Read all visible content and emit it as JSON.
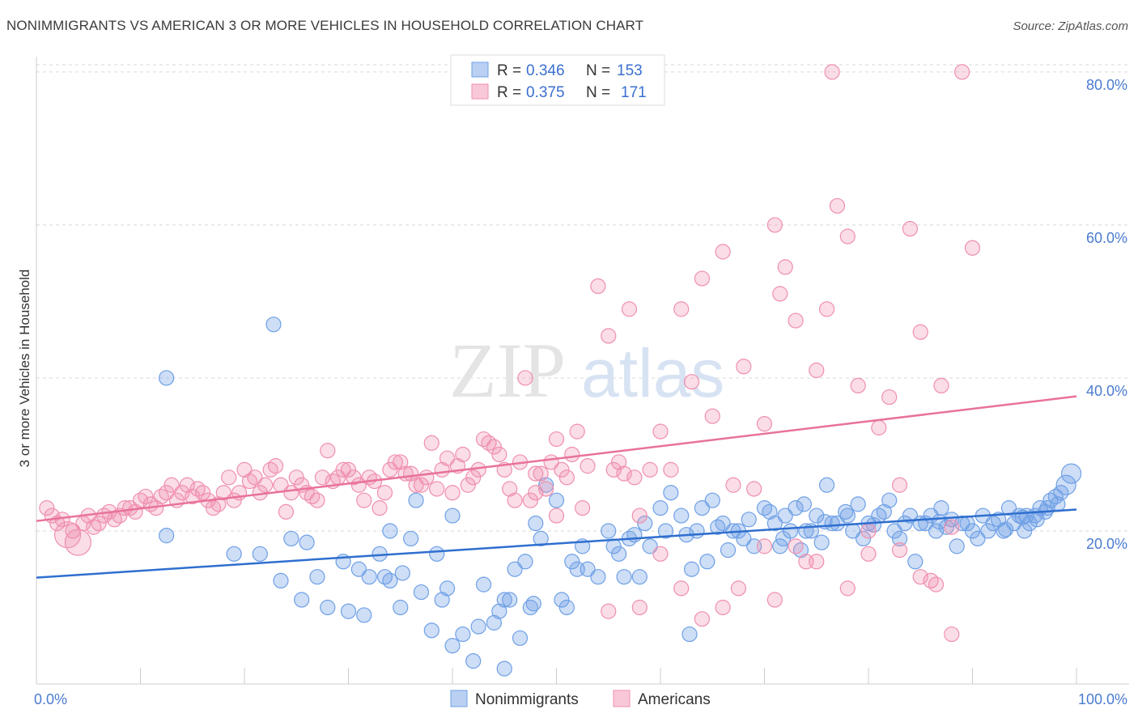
{
  "title": "NONIMMIGRANTS VS AMERICAN 3 OR MORE VEHICLES IN HOUSEHOLD CORRELATION CHART",
  "source": "Source: ZipAtlas.com",
  "watermark": {
    "zip": "ZIP",
    "atlas": "atlas"
  },
  "legend": {
    "r_label": "R =",
    "n_label": "N =",
    "rows": [
      {
        "r": "0.346",
        "n": "153",
        "color": "#6fa0e6"
      },
      {
        "r": "0.375",
        "n": "171",
        "color": "#f08fae"
      }
    ]
  },
  "chart_data": {
    "type": "scatter",
    "xlabel": "",
    "ylabel": "3 or more Vehicles in Household",
    "xlim": [
      0,
      100
    ],
    "ylim": [
      0,
      82
    ],
    "x_tick_labels": [
      "0.0%",
      "100.0%"
    ],
    "y_ticks": [
      20,
      40,
      60,
      80
    ],
    "y_tick_labels": [
      "20.0%",
      "40.0%",
      "60.0%",
      "80.0%"
    ],
    "grid": true,
    "legend_position": "top-center",
    "series": [
      {
        "name": "Nonimmigrants",
        "color": "#6fa0e6",
        "trend": {
          "x": [
            0,
            100
          ],
          "y": [
            13.9,
            22.8
          ]
        },
        "points": [
          [
            12.5,
            19.4
          ],
          [
            22.8,
            47.0
          ],
          [
            12.5,
            40.0
          ],
          [
            19,
            17
          ],
          [
            26,
            18.5
          ],
          [
            27,
            14
          ],
          [
            28,
            10
          ],
          [
            25.5,
            11
          ],
          [
            30,
            9.5
          ],
          [
            31,
            15
          ],
          [
            32,
            14
          ],
          [
            33,
            17
          ],
          [
            34,
            20
          ],
          [
            34,
            13.5
          ],
          [
            35,
            10
          ],
          [
            36,
            19
          ],
          [
            37,
            12
          ],
          [
            38,
            7
          ],
          [
            39,
            11
          ],
          [
            40,
            5
          ],
          [
            40,
            22
          ],
          [
            41,
            6.5
          ],
          [
            42,
            3
          ],
          [
            43,
            13
          ],
          [
            44,
            8
          ],
          [
            45,
            11
          ],
          [
            45,
            2
          ],
          [
            46,
            15
          ],
          [
            47,
            16
          ],
          [
            47.5,
            10
          ],
          [
            48,
            21
          ],
          [
            49,
            26
          ],
          [
            50,
            24
          ],
          [
            50.5,
            11
          ],
          [
            51,
            10
          ],
          [
            52,
            15
          ],
          [
            53,
            15
          ],
          [
            54,
            14
          ],
          [
            55,
            20
          ],
          [
            55.5,
            18
          ],
          [
            56,
            17
          ],
          [
            57,
            19
          ],
          [
            58,
            14
          ],
          [
            58.5,
            21
          ],
          [
            59,
            18
          ],
          [
            60,
            23
          ],
          [
            61,
            25
          ],
          [
            62,
            22
          ],
          [
            62.5,
            19.5
          ],
          [
            63,
            15
          ],
          [
            63.5,
            20
          ],
          [
            64,
            23
          ],
          [
            65,
            24
          ],
          [
            66,
            21
          ],
          [
            66.5,
            17.5
          ],
          [
            67,
            20
          ],
          [
            68,
            19
          ],
          [
            69,
            18
          ],
          [
            70,
            23
          ],
          [
            71,
            21
          ],
          [
            71.5,
            18
          ],
          [
            72,
            22
          ],
          [
            72.5,
            20
          ],
          [
            73,
            23
          ],
          [
            73.5,
            17.5
          ],
          [
            74,
            20
          ],
          [
            75,
            22
          ],
          [
            75.5,
            18.5
          ],
          [
            76,
            26
          ],
          [
            77,
            21
          ],
          [
            78,
            22
          ],
          [
            78.5,
            20
          ],
          [
            79,
            23.5
          ],
          [
            80,
            21
          ],
          [
            81,
            22
          ],
          [
            82,
            24
          ],
          [
            82.5,
            20
          ],
          [
            83,
            19
          ],
          [
            84,
            22
          ],
          [
            84.5,
            16
          ],
          [
            85,
            21
          ],
          [
            86,
            22
          ],
          [
            86.5,
            20
          ],
          [
            87,
            23
          ],
          [
            88,
            21.5
          ],
          [
            88.5,
            18
          ],
          [
            89,
            21
          ],
          [
            90,
            20
          ],
          [
            90.5,
            19
          ],
          [
            91,
            22
          ],
          [
            92,
            21
          ],
          [
            93,
            20
          ],
          [
            93.5,
            23
          ],
          [
            94,
            21
          ],
          [
            94.5,
            22
          ],
          [
            95,
            20
          ],
          [
            95.5,
            21
          ],
          [
            96,
            22
          ],
          [
            96.5,
            23
          ],
          [
            97,
            22.5
          ],
          [
            97.5,
            24
          ],
          [
            98,
            24.5
          ],
          [
            98.5,
            25
          ],
          [
            99,
            26
          ],
          [
            99.5,
            27.5
          ],
          [
            21.5,
            17
          ],
          [
            23.5,
            13.5
          ],
          [
            24.5,
            19
          ],
          [
            29.5,
            16
          ],
          [
            36.5,
            24
          ],
          [
            44.5,
            9.5
          ],
          [
            46.5,
            6
          ],
          [
            48.5,
            19
          ],
          [
            52.5,
            18
          ],
          [
            56.5,
            14
          ],
          [
            60.5,
            20
          ],
          [
            64.5,
            16
          ],
          [
            67.5,
            20
          ],
          [
            70.5,
            22.5
          ],
          [
            74.5,
            20
          ],
          [
            76.5,
            21
          ],
          [
            79.5,
            19
          ],
          [
            81.5,
            22.5
          ],
          [
            83.5,
            21
          ],
          [
            85.5,
            21
          ],
          [
            87.5,
            20.5
          ],
          [
            89.5,
            21
          ],
          [
            91.5,
            20
          ],
          [
            92.5,
            21.5
          ],
          [
            93.2,
            20.2
          ],
          [
            94.8,
            21.8
          ],
          [
            95.2,
            22
          ],
          [
            96.2,
            21.5
          ],
          [
            97.2,
            23
          ],
          [
            98.2,
            23.5
          ],
          [
            62.8,
            6.5
          ],
          [
            35.2,
            14.5
          ],
          [
            33.5,
            14
          ],
          [
            42.5,
            7.5
          ],
          [
            45.5,
            11
          ],
          [
            38.5,
            17
          ],
          [
            31.5,
            9
          ],
          [
            39.5,
            12.5
          ],
          [
            47.8,
            10.5
          ],
          [
            51.5,
            16
          ],
          [
            57.5,
            19.5
          ],
          [
            65.5,
            20.5
          ],
          [
            68.5,
            21.5
          ],
          [
            71.8,
            19
          ],
          [
            73.8,
            23.5
          ],
          [
            75.8,
            21.2
          ],
          [
            77.8,
            22.5
          ],
          [
            80.5,
            20.8
          ],
          [
            86.8,
            21.2
          ]
        ]
      },
      {
        "name": "Americans",
        "color": "#f08fae",
        "trend": {
          "x": [
            0,
            100
          ],
          "y": [
            21.3,
            37.6
          ]
        },
        "points": [
          [
            4,
            18.5
          ],
          [
            3,
            19.5
          ],
          [
            2,
            21
          ],
          [
            5,
            22
          ],
          [
            6,
            21
          ],
          [
            7,
            22.5
          ],
          [
            8,
            22
          ],
          [
            9,
            23
          ],
          [
            10,
            24
          ],
          [
            11,
            23.5
          ],
          [
            12,
            24.5
          ],
          [
            13,
            26
          ],
          [
            14,
            25
          ],
          [
            15,
            24.5
          ],
          [
            16,
            25
          ],
          [
            17,
            23
          ],
          [
            18,
            25
          ],
          [
            19,
            24
          ],
          [
            20,
            28
          ],
          [
            21,
            27
          ],
          [
            22,
            26
          ],
          [
            23,
            28.5
          ],
          [
            24,
            22.5
          ],
          [
            25,
            27
          ],
          [
            26,
            25
          ],
          [
            27,
            24
          ],
          [
            28,
            30.5
          ],
          [
            29,
            27
          ],
          [
            30,
            28
          ],
          [
            31,
            26
          ],
          [
            32,
            27
          ],
          [
            33,
            23
          ],
          [
            34,
            28
          ],
          [
            35,
            29
          ],
          [
            36,
            27.5
          ],
          [
            37,
            26
          ],
          [
            38,
            31.5
          ],
          [
            39,
            28
          ],
          [
            40,
            25
          ],
          [
            41,
            30
          ],
          [
            42,
            27
          ],
          [
            43,
            32
          ],
          [
            44,
            31
          ],
          [
            45,
            28
          ],
          [
            46,
            24
          ],
          [
            47,
            40
          ],
          [
            48,
            27.5
          ],
          [
            49,
            25.5
          ],
          [
            50,
            32
          ],
          [
            51,
            27
          ],
          [
            52,
            33
          ],
          [
            53,
            28.5
          ],
          [
            54,
            52
          ],
          [
            55,
            45.5
          ],
          [
            56,
            29
          ],
          [
            57,
            49
          ],
          [
            58,
            22
          ],
          [
            59,
            28
          ],
          [
            60,
            33
          ],
          [
            61,
            28
          ],
          [
            62,
            49
          ],
          [
            63,
            39.5
          ],
          [
            64,
            53
          ],
          [
            65,
            35
          ],
          [
            66,
            56.5
          ],
          [
            67,
            26
          ],
          [
            68,
            41.5
          ],
          [
            69,
            25.5
          ],
          [
            70,
            34
          ],
          [
            71,
            60
          ],
          [
            71.5,
            51
          ],
          [
            72,
            54.5
          ],
          [
            73,
            47.5
          ],
          [
            74,
            16
          ],
          [
            75,
            41
          ],
          [
            76,
            49
          ],
          [
            77,
            62.5
          ],
          [
            78,
            58.5
          ],
          [
            79,
            39
          ],
          [
            80,
            17
          ],
          [
            81,
            33.5
          ],
          [
            82,
            37.5
          ],
          [
            83,
            26
          ],
          [
            84,
            59.5
          ],
          [
            85,
            46
          ],
          [
            86,
            13.5
          ],
          [
            87,
            39
          ],
          [
            88,
            6.5
          ],
          [
            89,
            80
          ],
          [
            90,
            57
          ],
          [
            76.5,
            80
          ],
          [
            50,
            22
          ],
          [
            52.5,
            23
          ],
          [
            48,
            25
          ],
          [
            55,
            9.5
          ],
          [
            58,
            10
          ],
          [
            60,
            17
          ],
          [
            62,
            12.5
          ],
          [
            64,
            8.5
          ],
          [
            66,
            10
          ],
          [
            67.5,
            12.5
          ],
          [
            70,
            18
          ],
          [
            71,
            11
          ],
          [
            73,
            18
          ],
          [
            75,
            16
          ],
          [
            78,
            12.5
          ],
          [
            80,
            20
          ],
          [
            83,
            17.5
          ],
          [
            85,
            14
          ],
          [
            86.5,
            13
          ],
          [
            88,
            20.5
          ],
          [
            1,
            23
          ],
          [
            1.5,
            22
          ],
          [
            2.5,
            21.5
          ],
          [
            3.5,
            20
          ],
          [
            4.5,
            21
          ],
          [
            5.5,
            20.5
          ],
          [
            6.5,
            22
          ],
          [
            7.5,
            21.5
          ],
          [
            8.5,
            23
          ],
          [
            9.5,
            22.5
          ],
          [
            10.5,
            24.5
          ],
          [
            11.5,
            23
          ],
          [
            12.5,
            25
          ],
          [
            13.5,
            24
          ],
          [
            14.5,
            26
          ],
          [
            15.5,
            25.5
          ],
          [
            16.5,
            24
          ],
          [
            17.5,
            23.5
          ],
          [
            18.5,
            27
          ],
          [
            19.5,
            25
          ],
          [
            20.5,
            26.5
          ],
          [
            21.5,
            25
          ],
          [
            22.5,
            28
          ],
          [
            23.5,
            26
          ],
          [
            24.5,
            25
          ],
          [
            25.5,
            26
          ],
          [
            26.5,
            24.5
          ],
          [
            27.5,
            27
          ],
          [
            28.5,
            26.5
          ],
          [
            29.5,
            28
          ],
          [
            30.5,
            27
          ],
          [
            31.5,
            24
          ],
          [
            32.5,
            26.5
          ],
          [
            33.5,
            25
          ],
          [
            34.5,
            29
          ],
          [
            35.5,
            27.5
          ],
          [
            36.5,
            26
          ],
          [
            37.5,
            27
          ],
          [
            38.5,
            25.5
          ],
          [
            39.5,
            29.5
          ],
          [
            40.5,
            28.5
          ],
          [
            41.5,
            26
          ],
          [
            42.5,
            28
          ],
          [
            43.5,
            31.5
          ],
          [
            44.5,
            30
          ],
          [
            45.5,
            25.5
          ],
          [
            46.5,
            29
          ],
          [
            47.5,
            24
          ],
          [
            48.5,
            27.5
          ],
          [
            49.5,
            29
          ],
          [
            50.5,
            28
          ],
          [
            51.5,
            30
          ],
          [
            55.5,
            28
          ],
          [
            56.5,
            27.5
          ],
          [
            57.5,
            27
          ]
        ]
      }
    ]
  }
}
